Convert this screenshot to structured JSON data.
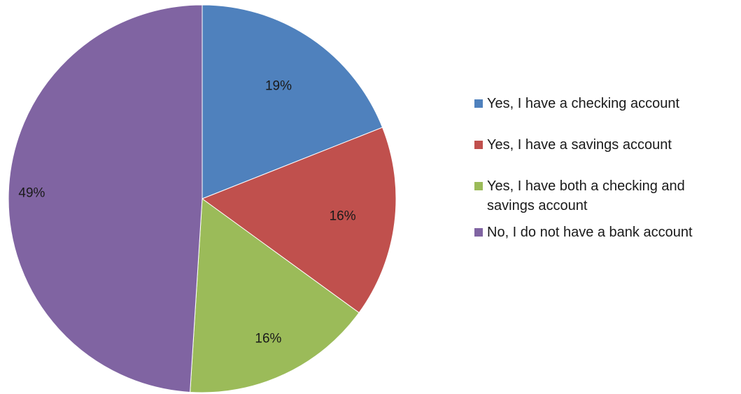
{
  "chart_data": {
    "type": "pie",
    "start_angle_deg": 0,
    "direction": "clockwise",
    "legend_position": "right",
    "slices": [
      {
        "label": "Yes, I have a checking account",
        "value": 19,
        "display": "19%",
        "color": "#4F81BD"
      },
      {
        "label": "Yes, I have a savings account",
        "value": 16,
        "display": "16%",
        "color": "#C0504D"
      },
      {
        "label": "Yes, I have both a checking and savings account",
        "value": 16,
        "display": "16%",
        "color": "#9BBB59"
      },
      {
        "label": "No, I do not have a bank account",
        "value": 49,
        "display": "49%",
        "color": "#8064A2"
      }
    ]
  }
}
